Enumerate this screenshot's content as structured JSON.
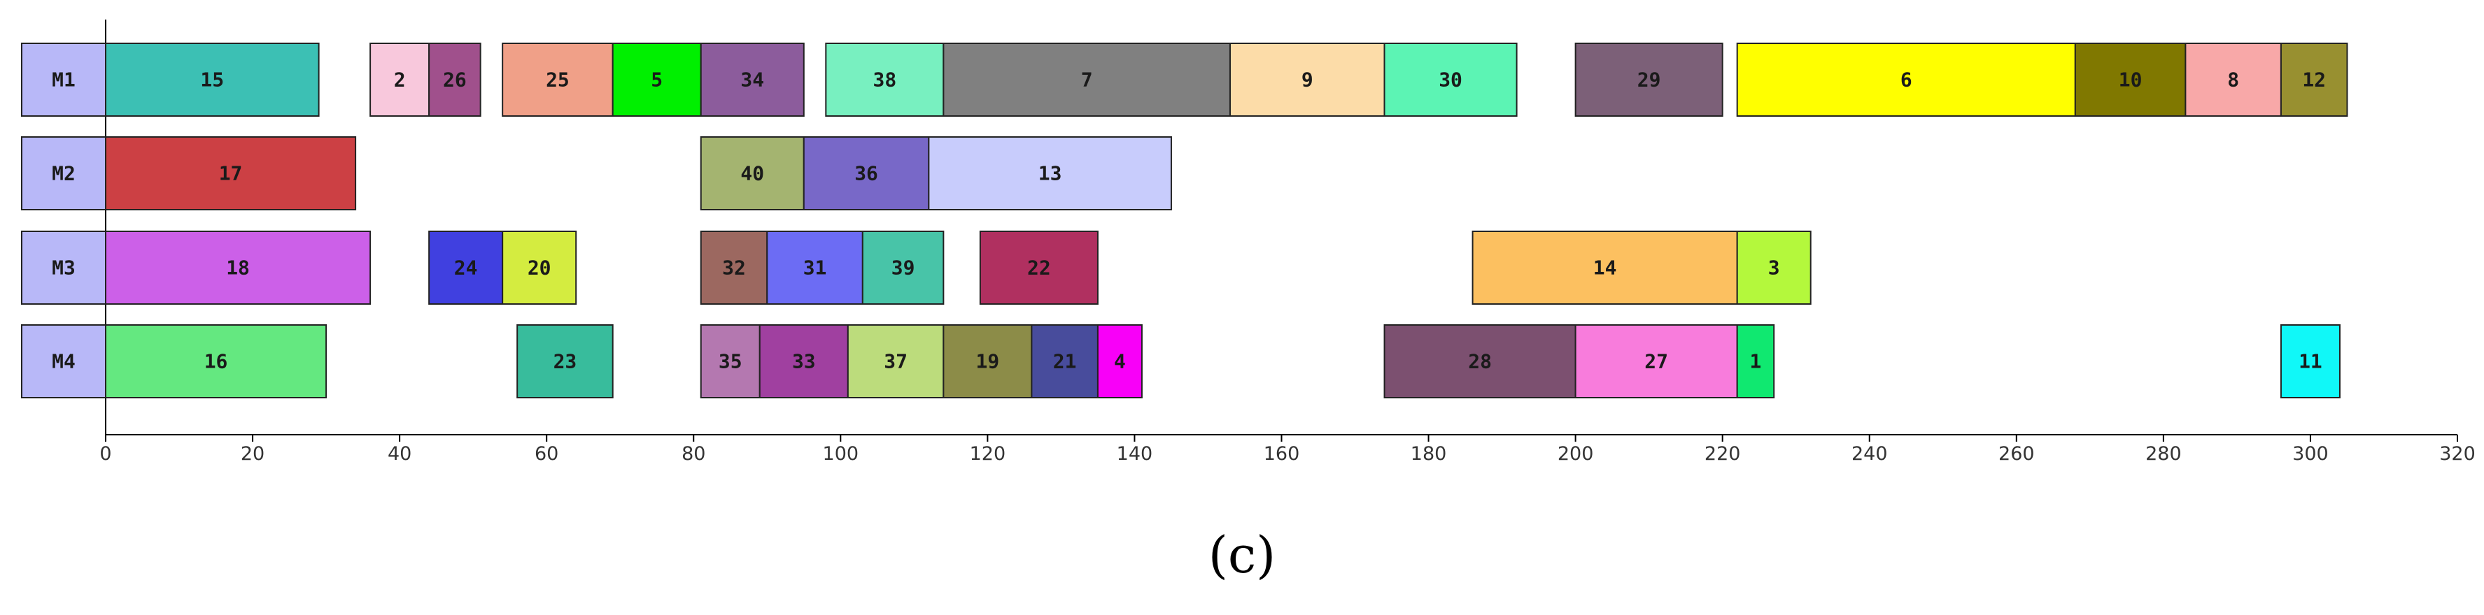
{
  "caption": "(c)",
  "chart_data": {
    "type": "gantt",
    "xlim": [
      0,
      320
    ],
    "x_ticks": [
      0,
      20,
      40,
      60,
      80,
      100,
      120,
      140,
      160,
      180,
      200,
      220,
      240,
      260,
      280,
      300,
      320
    ],
    "machine_label_color": "#b8b8f8",
    "machines": [
      {
        "name": "M1",
        "tasks": [
          {
            "label": "15",
            "start": 0,
            "end": 29,
            "color": "#3cc0b4"
          },
          {
            "label": "2",
            "start": 36,
            "end": 44,
            "color": "#f8c8dc"
          },
          {
            "label": "26",
            "start": 44,
            "end": 51,
            "color": "#a0508c"
          },
          {
            "label": "25",
            "start": 54,
            "end": 69,
            "color": "#f0a088"
          },
          {
            "label": "5",
            "start": 69,
            "end": 81,
            "color": "#00f000"
          },
          {
            "label": "34",
            "start": 81,
            "end": 95,
            "color": "#8c5c9c"
          },
          {
            "label": "38",
            "start": 98,
            "end": 114,
            "color": "#78f0c0"
          },
          {
            "label": "7",
            "start": 114,
            "end": 153,
            "color": "#808080"
          },
          {
            "label": "9",
            "start": 153,
            "end": 174,
            "color": "#fcdca8"
          },
          {
            "label": "30",
            "start": 174,
            "end": 192,
            "color": "#5cf4b4"
          },
          {
            "label": "29",
            "start": 200,
            "end": 220,
            "color": "#7c6078"
          },
          {
            "label": "6",
            "start": 222,
            "end": 268,
            "color": "#ffff00"
          },
          {
            "label": "10",
            "start": 268,
            "end": 283,
            "color": "#807800"
          },
          {
            "label": "8",
            "start": 283,
            "end": 296,
            "color": "#f8a8a8"
          },
          {
            "label": "12",
            "start": 296,
            "end": 305,
            "color": "#989030"
          }
        ]
      },
      {
        "name": "M2",
        "tasks": [
          {
            "label": "17",
            "start": 0,
            "end": 34,
            "color": "#cc4044"
          },
          {
            "label": "40",
            "start": 81,
            "end": 95,
            "color": "#a4b470"
          },
          {
            "label": "36",
            "start": 95,
            "end": 112,
            "color": "#7868c8"
          },
          {
            "label": "13",
            "start": 112,
            "end": 145,
            "color": "#c8ccfc"
          }
        ]
      },
      {
        "name": "M3",
        "tasks": [
          {
            "label": "18",
            "start": 0,
            "end": 36,
            "color": "#cc60e8"
          },
          {
            "label": "24",
            "start": 44,
            "end": 54,
            "color": "#4040e0"
          },
          {
            "label": "20",
            "start": 54,
            "end": 64,
            "color": "#d4ec40"
          },
          {
            "label": "32",
            "start": 81,
            "end": 90,
            "color": "#9c6860"
          },
          {
            "label": "31",
            "start": 90,
            "end": 103,
            "color": "#6c6cf4"
          },
          {
            "label": "39",
            "start": 103,
            "end": 114,
            "color": "#48c4a8"
          },
          {
            "label": "22",
            "start": 119,
            "end": 135,
            "color": "#b03060"
          },
          {
            "label": "14",
            "start": 186,
            "end": 222,
            "color": "#fcc060"
          },
          {
            "label": "3",
            "start": 222,
            "end": 232,
            "color": "#b4f83c"
          }
        ]
      },
      {
        "name": "M4",
        "tasks": [
          {
            "label": "16",
            "start": 0,
            "end": 30,
            "color": "#64e880"
          },
          {
            "label": "23",
            "start": 56,
            "end": 69,
            "color": "#38bc9c"
          },
          {
            "label": "35",
            "start": 81,
            "end": 89,
            "color": "#b478b0"
          },
          {
            "label": "33",
            "start": 89,
            "end": 101,
            "color": "#a040a0"
          },
          {
            "label": "37",
            "start": 101,
            "end": 114,
            "color": "#bcdc7c"
          },
          {
            "label": "19",
            "start": 114,
            "end": 126,
            "color": "#8c8c48"
          },
          {
            "label": "21",
            "start": 126,
            "end": 135,
            "color": "#484c9c"
          },
          {
            "label": "4",
            "start": 135,
            "end": 141,
            "color": "#f800f8"
          },
          {
            "label": "28",
            "start": 174,
            "end": 200,
            "color": "#7c5070"
          },
          {
            "label": "27",
            "start": 200,
            "end": 222,
            "color": "#f87cdc"
          },
          {
            "label": "1",
            "start": 222,
            "end": 227,
            "color": "#10e870"
          },
          {
            "label": "11",
            "start": 296,
            "end": 304,
            "color": "#10f8f8"
          }
        ]
      }
    ]
  }
}
